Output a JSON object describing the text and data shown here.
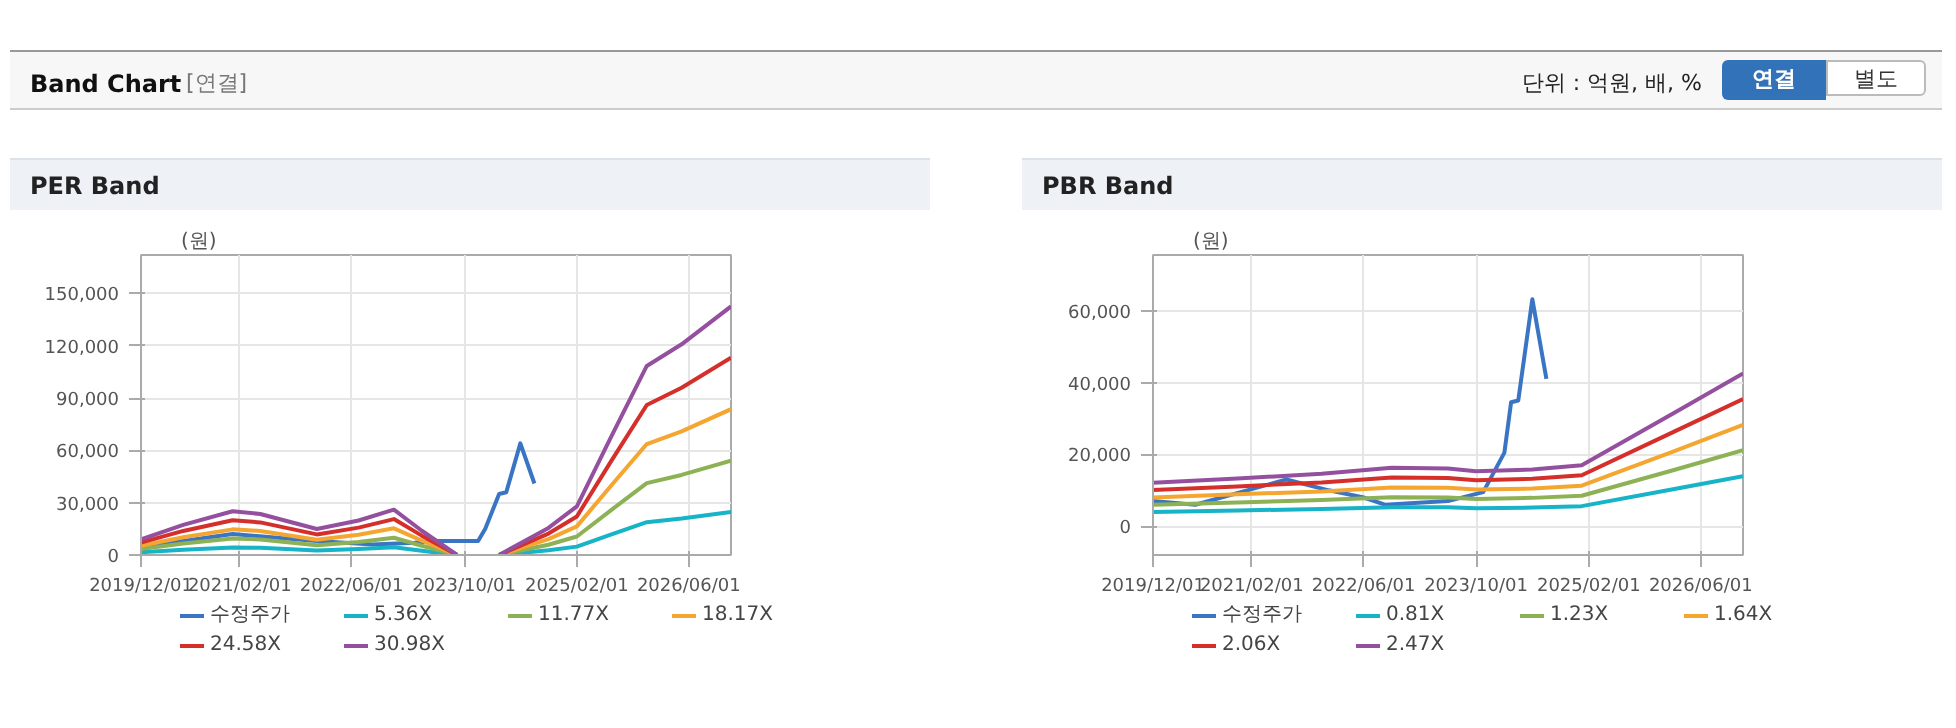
{
  "chart_data": [
    {
      "type": "line",
      "title": "PER Band",
      "annotations": [
        "Band Chart",
        "[연결]",
        "단위 : 억원, 배, %",
        "연결",
        "별도"
      ],
      "ylabel": "(원)",
      "legend": "bottom",
      "grid": true,
      "xlim": [
        "2019-12-01",
        "2026-12-01"
      ],
      "xticks": [
        {
          "value": "2019-12-01",
          "label": "2019/12/01"
        },
        {
          "value": "2021-02-01",
          "label": "2021/02/01"
        },
        {
          "value": "2022-06-01",
          "label": "2022/06/01"
        },
        {
          "value": "2023-10-01",
          "label": "2023/10/01"
        },
        {
          "value": "2025-02-01",
          "label": "2025/02/01"
        },
        {
          "value": "2026-06-01",
          "label": "2026/06/01"
        }
      ],
      "ylim": [
        0,
        172000
      ],
      "yticks": [
        {
          "value": 0,
          "label": "0"
        },
        {
          "value": 30000,
          "label": "30,000"
        },
        {
          "value": 60000,
          "label": "60,000"
        },
        {
          "value": 90000,
          "label": "90,000"
        },
        {
          "value": 120000,
          "label": "120,000"
        },
        {
          "value": 150000,
          "label": "150,000"
        }
      ],
      "x": [
        "2019-12",
        "2020-06",
        "2021-01",
        "2021-05",
        "2022-01",
        "2022-07",
        "2022-12",
        "2023-04",
        "2023-09",
        "2023-12",
        "2024-03",
        "2024-10",
        "2025-02",
        "2025-07",
        "2025-12",
        "2026-05",
        "2026-12"
      ],
      "series": [
        {
          "name": "수정주가",
          "color": "#3a75c4",
          "x": [
            "2019-12",
            "2020-06",
            "2021-01",
            "2021-07",
            "2022-01",
            "2022-09",
            "2023-03",
            "2023-06",
            "2023-12",
            "2024-01",
            "2024-03",
            "2024-04",
            "2024-06",
            "2024-08"
          ],
          "values": [
            5000,
            8000,
            12000,
            10000,
            8000,
            6000,
            7000,
            8000,
            8000,
            15000,
            35000,
            36000,
            64000,
            41000
          ]
        },
        {
          "name": "5.36X",
          "color": "#17b3c7",
          "values": [
            1600,
            3000,
            4300,
            4100,
            2600,
            3400,
            4500,
            2400,
            0,
            null,
            0,
            2700,
            4800,
            11800,
            18800,
            20900,
            24700
          ]
        },
        {
          "name": "11.77X",
          "color": "#8db255",
          "values": [
            3400,
            6600,
            9500,
            8900,
            5600,
            7500,
            9900,
            5300,
            0,
            null,
            0,
            5900,
            10600,
            25900,
            41200,
            45900,
            54100
          ]
        },
        {
          "name": "18.17X",
          "color": "#f5a631",
          "values": [
            5300,
            10200,
            14700,
            13800,
            8700,
            11600,
            15300,
            8200,
            0,
            null,
            0,
            9100,
            16400,
            40000,
            63600,
            70900,
            83600
          ]
        },
        {
          "name": "24.58X",
          "color": "#d42f2a",
          "values": [
            7100,
            13800,
            19900,
            18700,
            11800,
            15700,
            20600,
            11100,
            0,
            null,
            0,
            12300,
            22100,
            54100,
            86000,
            95900,
            113100
          ]
        },
        {
          "name": "30.98X",
          "color": "#94509e",
          "values": [
            9000,
            17300,
            25100,
            23500,
            14900,
            19800,
            26000,
            13900,
            0,
            null,
            0,
            15500,
            27900,
            68200,
            108400,
            120800,
            142500
          ]
        }
      ]
    },
    {
      "type": "line",
      "title": "PBR Band",
      "ylabel": "(원)",
      "legend": "bottom",
      "grid": true,
      "xlim": [
        "2019-12-01",
        "2026-12-01"
      ],
      "xticks": [
        {
          "value": "2019-12-01",
          "label": "2019/12/01"
        },
        {
          "value": "2021-02-01",
          "label": "2021/02/01"
        },
        {
          "value": "2022-06-01",
          "label": "2022/06/01"
        },
        {
          "value": "2023-10-01",
          "label": "2023/10/01"
        },
        {
          "value": "2025-02-01",
          "label": "2025/02/01"
        },
        {
          "value": "2026-06-01",
          "label": "2026/06/01"
        }
      ],
      "ylim": [
        -8000,
        75500
      ],
      "yticks": [
        {
          "value": 0,
          "label": "0"
        },
        {
          "value": 20000,
          "label": "20,000"
        },
        {
          "value": 40000,
          "label": "40,000"
        },
        {
          "value": 60000,
          "label": "60,000"
        }
      ],
      "x": [
        "2019-12",
        "2020-12",
        "2021-12",
        "2022-10",
        "2023-06",
        "2023-10",
        "2024-06",
        "2025-01",
        "2026-02",
        "2026-12"
      ],
      "series": [
        {
          "name": "수정주가",
          "color": "#3a75c4",
          "x": [
            "2019-12",
            "2020-06",
            "2021-07",
            "2022-01",
            "2022-06",
            "2022-09",
            "2023-06",
            "2023-11",
            "2024-02",
            "2024-03",
            "2024-04",
            "2024-06",
            "2024-08"
          ],
          "values": [
            7000,
            6000,
            13000,
            10000,
            8000,
            6000,
            7000,
            9500,
            20500,
            34500,
            35000,
            63200,
            41000
          ]
        },
        {
          "name": "0.81X",
          "color": "#17b3c7",
          "values": [
            4000,
            4400,
            4800,
            5300,
            5300,
            5000,
            5200,
            5600,
            10300,
            13900
          ]
        },
        {
          "name": "1.23X",
          "color": "#8db255",
          "values": [
            6000,
            6600,
            7300,
            8100,
            8000,
            7600,
            7900,
            8500,
            15600,
            21200
          ]
        },
        {
          "name": "1.64X",
          "color": "#f5a631",
          "values": [
            8000,
            8900,
            9700,
            10800,
            10700,
            10200,
            10500,
            11300,
            20800,
            28200
          ]
        },
        {
          "name": "2.06X",
          "color": "#d42f2a",
          "values": [
            10100,
            11100,
            12200,
            13600,
            13400,
            12800,
            13200,
            14200,
            26200,
            35400
          ]
        },
        {
          "name": "2.47X",
          "color": "#94509e",
          "values": [
            12100,
            13300,
            14600,
            16300,
            16100,
            15300,
            15800,
            17000,
            31400,
            42500
          ]
        }
      ]
    }
  ]
}
